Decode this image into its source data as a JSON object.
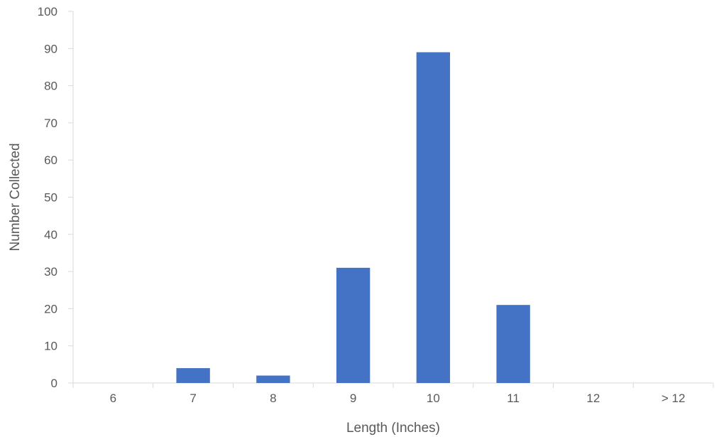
{
  "chart_data": {
    "type": "bar",
    "title": "",
    "xlabel": "Length (Inches)",
    "ylabel": "Number Collected",
    "categories": [
      "6",
      "7",
      "8",
      "9",
      "10",
      "11",
      "12",
      "> 12"
    ],
    "series": [
      {
        "values": [
          0,
          4,
          2,
          31,
          89,
          21,
          0,
          0
        ],
        "color": "#4472c4"
      }
    ],
    "ylim": [
      0,
      100
    ],
    "yticks": [
      0,
      10,
      20,
      30,
      40,
      50,
      60,
      70,
      80,
      90,
      100
    ],
    "grid": false,
    "legend": "none"
  }
}
